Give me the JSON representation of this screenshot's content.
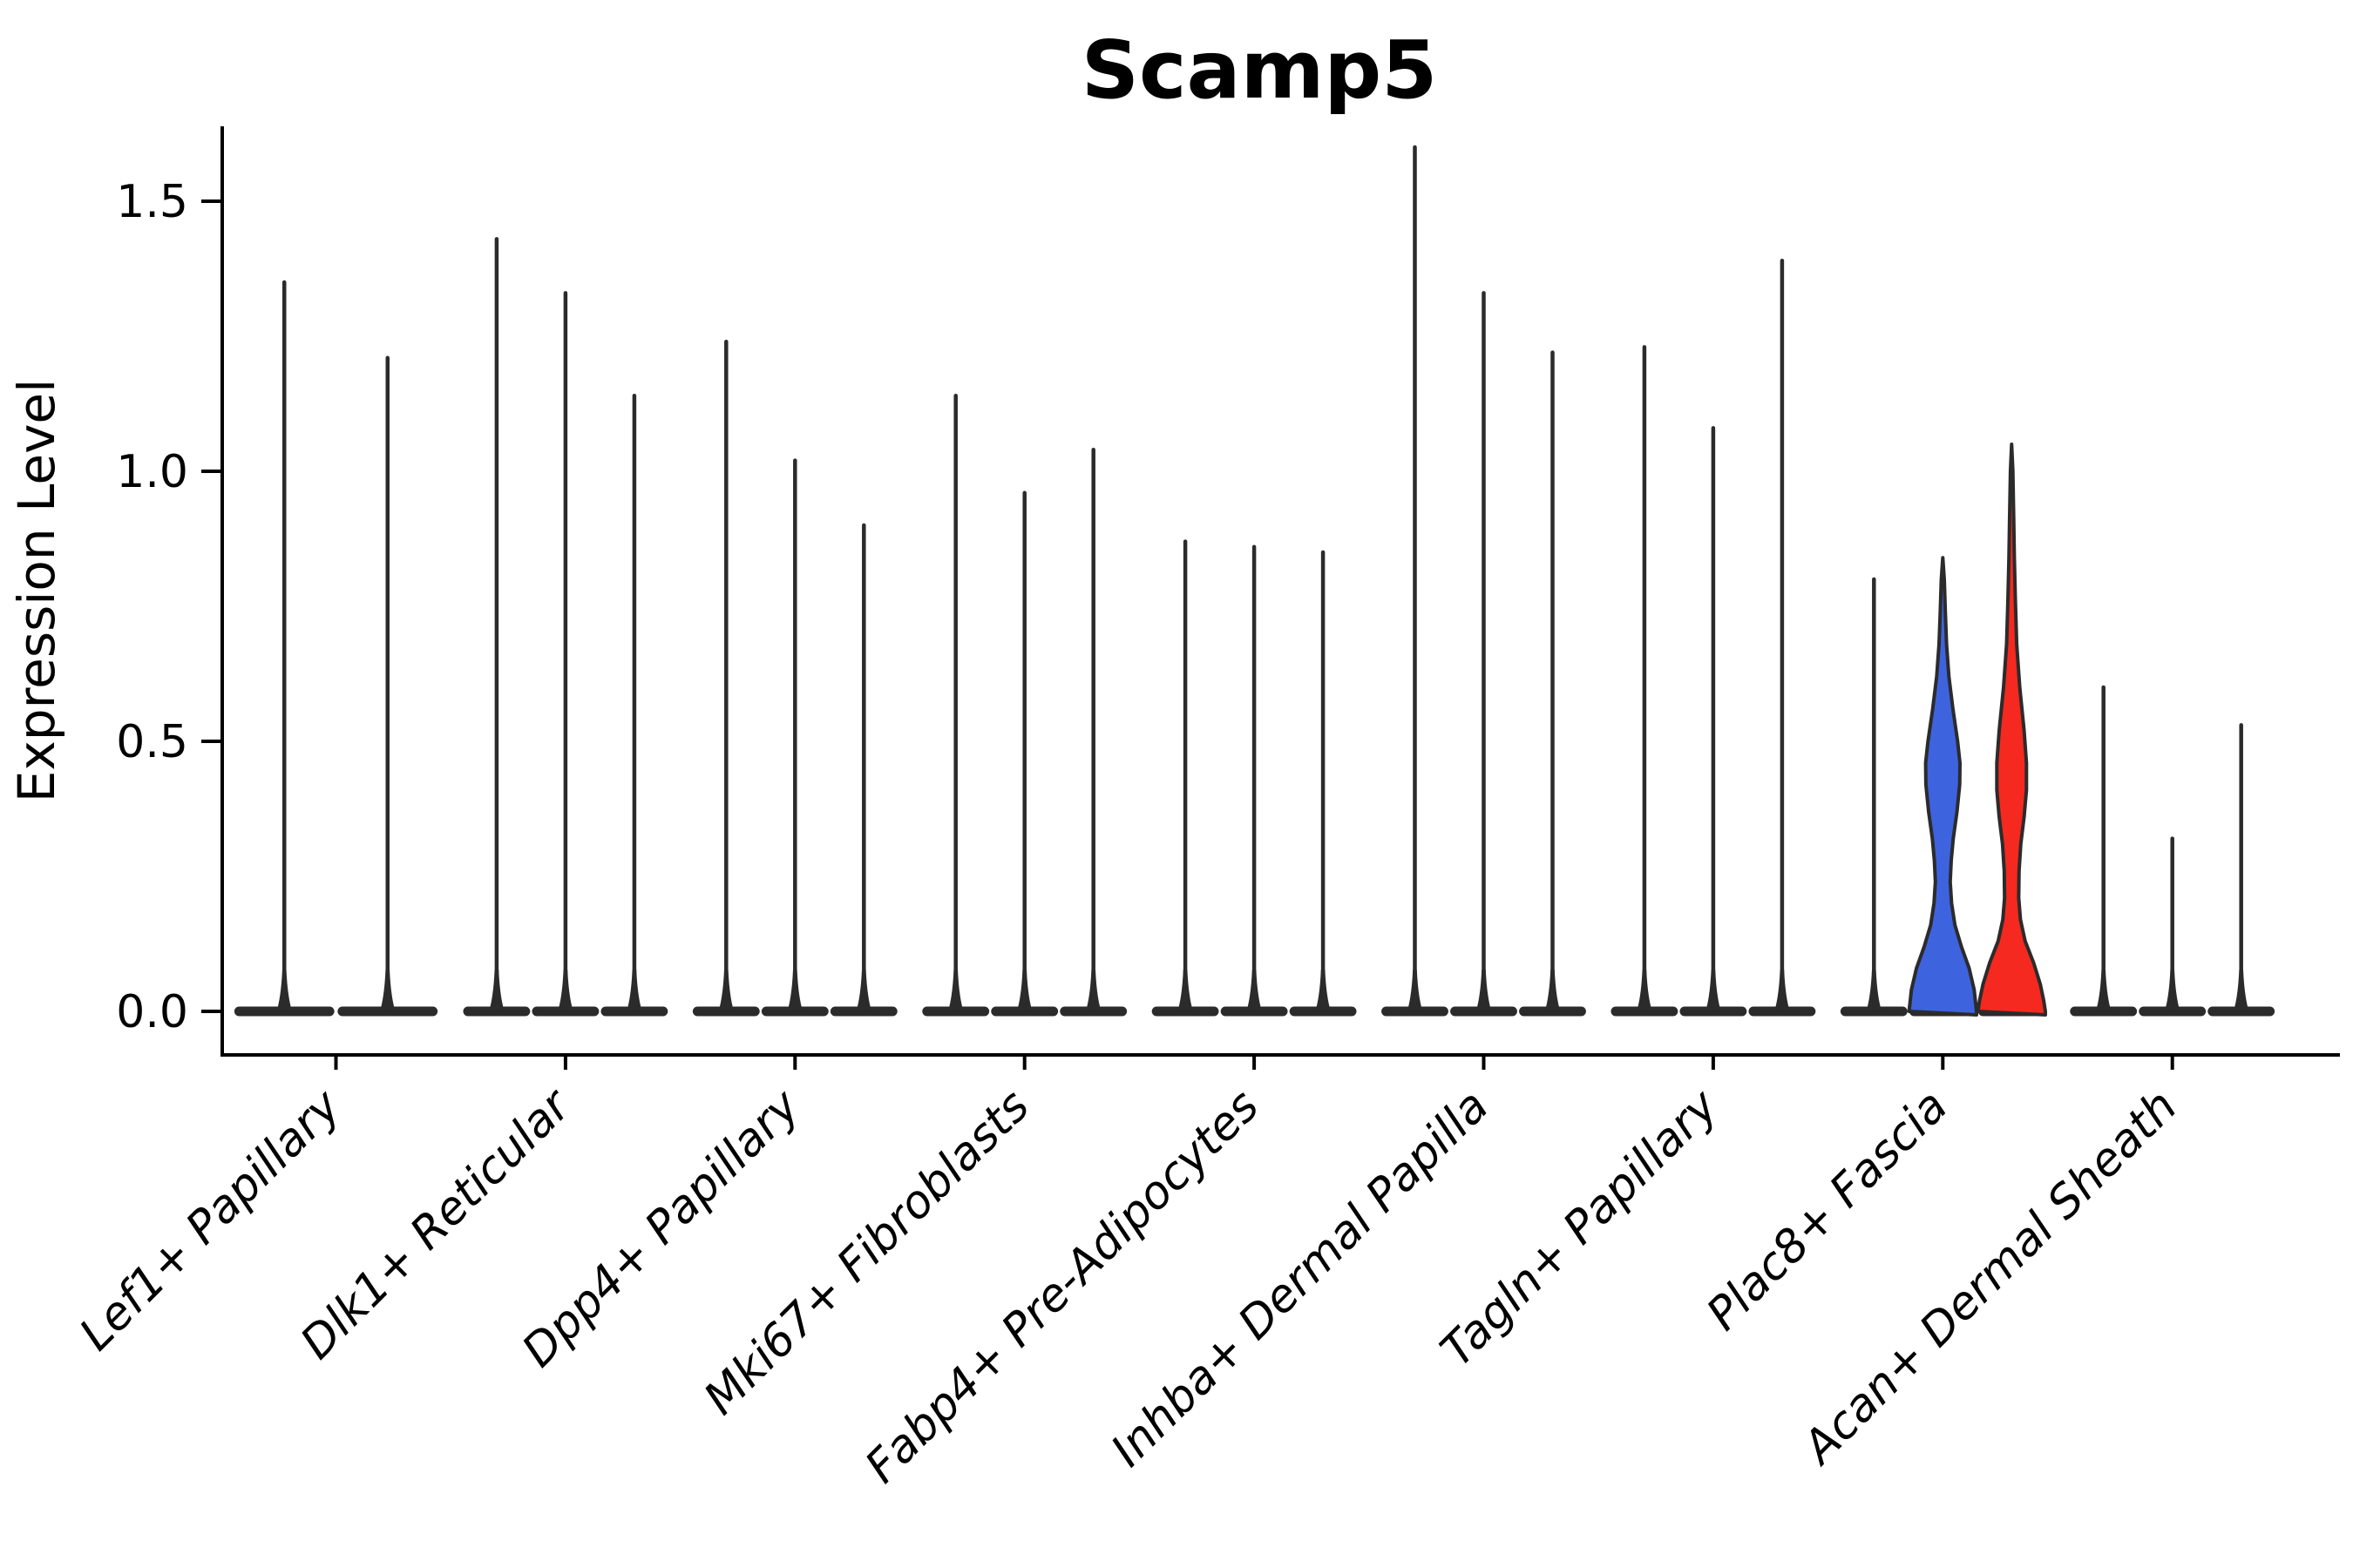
{
  "chart_data": {
    "type": "violin",
    "title": "Scamp5",
    "ylabel": "Expression Level",
    "xlabel": "",
    "ylim": [
      -0.08,
      1.66
    ],
    "grid": false,
    "legend": "none",
    "x_tick_rotation_deg": 45,
    "yticks": [
      {
        "label": "0.0",
        "value": 0.0
      },
      {
        "label": "0.5",
        "value": 0.5
      },
      {
        "label": "1.0",
        "value": 1.0
      },
      {
        "label": "1.5",
        "value": 1.5
      }
    ],
    "colors": {
      "ink": "#2b2b2b",
      "axis": "#000000",
      "background": "#ffffff",
      "blue_violin": "#3e63de",
      "red_violin": "#f5291f"
    },
    "categories": [
      {
        "label": "Lef1+ Papillary",
        "violins": [
          {
            "style": "thin",
            "max": 1.35
          },
          {
            "style": "thin",
            "max": 1.21
          }
        ]
      },
      {
        "label": "Dlk1+ Reticular",
        "violins": [
          {
            "style": "thin",
            "max": 1.43
          },
          {
            "style": "thin",
            "max": 1.33
          },
          {
            "style": "thin",
            "max": 1.14
          }
        ]
      },
      {
        "label": "Dpp4+ Papillary",
        "violins": [
          {
            "style": "thin",
            "max": 1.24
          },
          {
            "style": "thin",
            "max": 1.02
          },
          {
            "style": "thin",
            "max": 0.9
          }
        ]
      },
      {
        "label": "Mki67+ Fibroblasts",
        "violins": [
          {
            "style": "thin",
            "max": 1.14
          },
          {
            "style": "thin",
            "max": 0.96
          },
          {
            "style": "thin",
            "max": 1.04
          }
        ]
      },
      {
        "label": "Fabp4+ Pre-Adipocytes",
        "violins": [
          {
            "style": "thin",
            "max": 0.87
          },
          {
            "style": "thin",
            "max": 0.86
          },
          {
            "style": "thin",
            "max": 0.85
          }
        ]
      },
      {
        "label": "Inhba+ Dermal Papilla",
        "violins": [
          {
            "style": "thin",
            "max": 1.6
          },
          {
            "style": "thin",
            "max": 1.33
          },
          {
            "style": "thin",
            "max": 1.22
          }
        ]
      },
      {
        "label": "Tagln+ Papillary",
        "violins": [
          {
            "style": "thin",
            "max": 1.23
          },
          {
            "style": "thin",
            "max": 1.08
          },
          {
            "style": "thin",
            "max": 1.39
          }
        ]
      },
      {
        "label": "Plac8+ Fascia",
        "violins": [
          {
            "style": "thin",
            "max": 0.8
          },
          {
            "style": "filled",
            "color": "#3e63de",
            "max": 0.84,
            "profile": [
              [
                0.84,
                0.0
              ],
              [
                0.8,
                0.045
              ],
              [
                0.74,
                0.075
              ],
              [
                0.68,
                0.11
              ],
              [
                0.62,
                0.18
              ],
              [
                0.56,
                0.3
              ],
              [
                0.5,
                0.44
              ],
              [
                0.46,
                0.51
              ],
              [
                0.42,
                0.5
              ],
              [
                0.37,
                0.42
              ],
              [
                0.32,
                0.31
              ],
              [
                0.28,
                0.25
              ],
              [
                0.24,
                0.22
              ],
              [
                0.2,
                0.26
              ],
              [
                0.16,
                0.36
              ],
              [
                0.12,
                0.55
              ],
              [
                0.08,
                0.78
              ],
              [
                0.04,
                0.93
              ],
              [
                0.0,
                1.0
              ]
            ]
          },
          {
            "style": "filled",
            "color": "#f5291f",
            "max": 1.05,
            "profile": [
              [
                1.05,
                0.0
              ],
              [
                1.0,
                0.035
              ],
              [
                0.92,
                0.06
              ],
              [
                0.84,
                0.08
              ],
              [
                0.76,
                0.11
              ],
              [
                0.68,
                0.15
              ],
              [
                0.6,
                0.24
              ],
              [
                0.52,
                0.37
              ],
              [
                0.46,
                0.44
              ],
              [
                0.41,
                0.44
              ],
              [
                0.36,
                0.37
              ],
              [
                0.31,
                0.27
              ],
              [
                0.26,
                0.22
              ],
              [
                0.21,
                0.21
              ],
              [
                0.17,
                0.26
              ],
              [
                0.13,
                0.4
              ],
              [
                0.09,
                0.65
              ],
              [
                0.05,
                0.85
              ],
              [
                0.02,
                0.95
              ],
              [
                0.0,
                1.0
              ]
            ]
          }
        ]
      },
      {
        "label": "Acan+ Dermal Sheath",
        "violins": [
          {
            "style": "thin",
            "max": 0.6
          },
          {
            "style": "thin",
            "max": 0.32
          },
          {
            "style": "thin",
            "max": 0.53
          }
        ]
      }
    ]
  }
}
